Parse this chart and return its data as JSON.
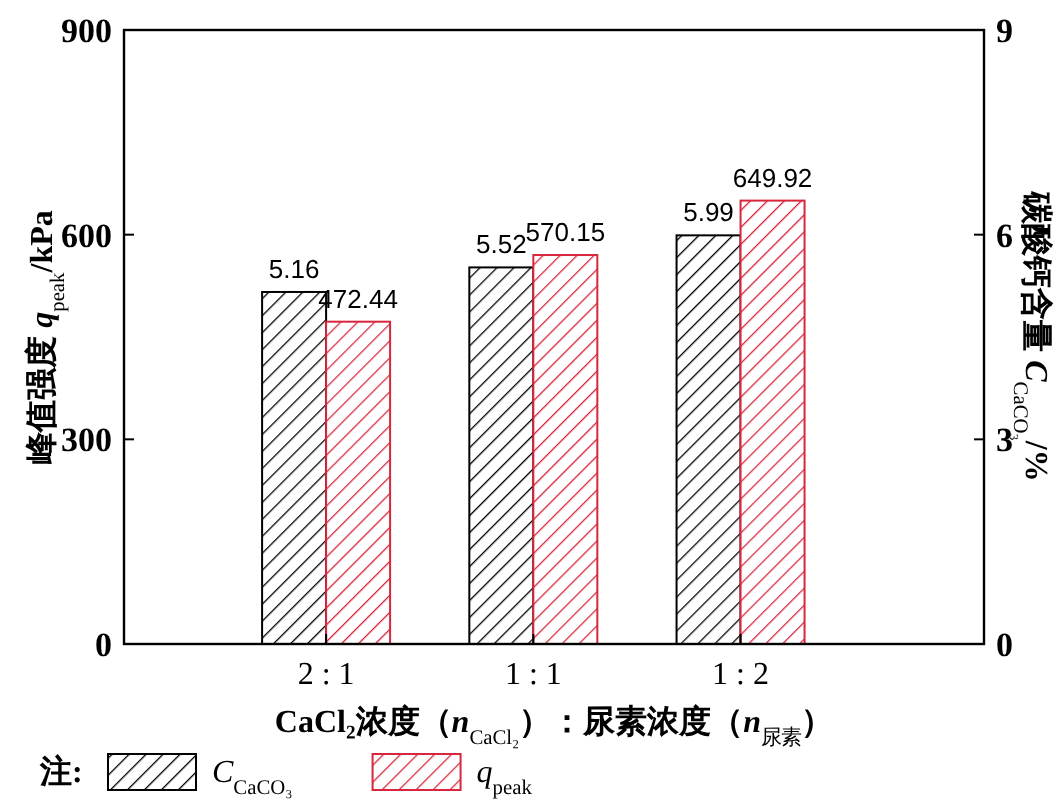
{
  "chart_data": {
    "type": "bar",
    "xlabel": "CaCl₂浓度（*n*$_{CaCl₂}$）：尿素浓度（*n*$_{尿素}$）",
    "ylabel": "峰值强度 *q*$_{peak}$/kPa",
    "y2label": "碳酸钙含量 *C*$_{CaCO₃}$/%",
    "legend_title": "注:",
    "categories": [
      "2 : 1",
      "1 : 1",
      "1 : 2"
    ],
    "series": [
      {
        "name": "*C*$_{CaCO₃}$",
        "color": "#000000",
        "axis": "y2",
        "values": [
          5.16,
          5.52,
          5.99
        ]
      },
      {
        "name": "*q*$_{peak}$",
        "color": "#d7263d",
        "axis": "y",
        "values": [
          472.44,
          570.15,
          649.92
        ]
      }
    ],
    "ylim": [
      0,
      900
    ],
    "yticks": [
      0,
      300,
      600,
      900
    ],
    "y2lim": [
      0,
      9
    ],
    "y2ticks": [
      0,
      3,
      6,
      9
    ],
    "data_labels": true,
    "legend": "bottom left"
  }
}
